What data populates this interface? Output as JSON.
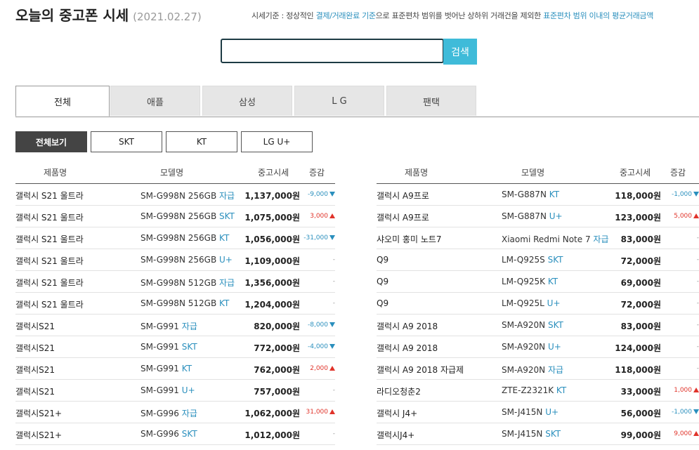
{
  "header": {
    "title": "오늘의 중고폰 시세",
    "date": "(2021.02.27)",
    "criteria_prefix": "시세기준 : 정상적인 ",
    "criteria_hl1": "결제/거래완료 기준",
    "criteria_mid": "으로 표준편차 범위를 벗어난 상하위 거래건을 제외한 ",
    "criteria_hl2": "표준편차 범위 이내의 평균거래금액"
  },
  "search": {
    "value": "",
    "button_label": "검색"
  },
  "tabs": [
    "전체",
    "애플",
    "삼성",
    "L G",
    "팬택"
  ],
  "filters": [
    "전체보기",
    "SKT",
    "KT",
    "LG U+"
  ],
  "columns": {
    "name": "제품명",
    "model": "모델명",
    "price": "중고시세",
    "change": "증감"
  },
  "left_rows": [
    {
      "name": "갤럭시 S21 울트라",
      "model": "SM-G998N 256GB",
      "carrier": "자급",
      "price": "1,137,000원",
      "change": "-9,000",
      "dir": "down"
    },
    {
      "name": "갤럭시 S21 울트라",
      "model": "SM-G998N 256GB",
      "carrier": "SKT",
      "price": "1,075,000원",
      "change": "3,000",
      "dir": "up"
    },
    {
      "name": "갤럭시 S21 울트라",
      "model": "SM-G998N 256GB",
      "carrier": "KT",
      "price": "1,056,000원",
      "change": "-31,000",
      "dir": "down"
    },
    {
      "name": "갤럭시 S21 울트라",
      "model": "SM-G998N 256GB",
      "carrier": "U+",
      "price": "1,109,000원",
      "change": "-",
      "dir": "flat"
    },
    {
      "name": "갤럭시 S21 울트라",
      "model": "SM-G998N 512GB",
      "carrier": "자급",
      "price": "1,356,000원",
      "change": "-",
      "dir": "flat"
    },
    {
      "name": "갤럭시 S21 울트라",
      "model": "SM-G998N 512GB",
      "carrier": "KT",
      "price": "1,204,000원",
      "change": "-",
      "dir": "flat"
    },
    {
      "name": "갤럭시S21",
      "model": "SM-G991",
      "carrier": "자급",
      "price": "820,000원",
      "change": "-8,000",
      "dir": "down"
    },
    {
      "name": "갤럭시S21",
      "model": "SM-G991",
      "carrier": "SKT",
      "price": "772,000원",
      "change": "-4,000",
      "dir": "down"
    },
    {
      "name": "갤럭시S21",
      "model": "SM-G991",
      "carrier": "KT",
      "price": "762,000원",
      "change": "2,000",
      "dir": "up"
    },
    {
      "name": "갤럭시S21",
      "model": "SM-G991",
      "carrier": "U+",
      "price": "757,000원",
      "change": "-",
      "dir": "flat"
    },
    {
      "name": "갤럭시S21+",
      "model": "SM-G996",
      "carrier": "자급",
      "price": "1,062,000원",
      "change": "31,000",
      "dir": "up"
    },
    {
      "name": "갤럭시S21+",
      "model": "SM-G996",
      "carrier": "SKT",
      "price": "1,012,000원",
      "change": "-",
      "dir": "flat"
    }
  ],
  "right_rows": [
    {
      "name": "갤럭시 A9프로",
      "model": "SM-G887N",
      "carrier": "KT",
      "price": "118,000원",
      "change": "-1,000",
      "dir": "down"
    },
    {
      "name": "갤럭시 A9프로",
      "model": "SM-G887N",
      "carrier": "U+",
      "price": "123,000원",
      "change": "5,000",
      "dir": "up"
    },
    {
      "name": "샤오미 홍미 노트7",
      "model": "Xiaomi Redmi Note 7",
      "carrier": "자급",
      "price": "83,000원",
      "change": "-",
      "dir": "flat"
    },
    {
      "name": "Q9",
      "model": "LM-Q925S",
      "carrier": "SKT",
      "price": "72,000원",
      "change": "-",
      "dir": "flat"
    },
    {
      "name": "Q9",
      "model": "LM-Q925K",
      "carrier": "KT",
      "price": "69,000원",
      "change": "-",
      "dir": "flat"
    },
    {
      "name": "Q9",
      "model": "LM-Q925L",
      "carrier": "U+",
      "price": "72,000원",
      "change": "-",
      "dir": "flat"
    },
    {
      "name": "갤럭시 A9 2018",
      "model": "SM-A920N",
      "carrier": "SKT",
      "price": "83,000원",
      "change": "-",
      "dir": "flat"
    },
    {
      "name": "갤럭시 A9 2018",
      "model": "SM-A920N",
      "carrier": "U+",
      "price": "124,000원",
      "change": "-",
      "dir": "flat"
    },
    {
      "name": "갤럭시 A9 2018 자급제",
      "model": "SM-A920N",
      "carrier": "자급",
      "price": "118,000원",
      "change": "-",
      "dir": "flat"
    },
    {
      "name": "라디오청춘2",
      "model": "ZTE-Z2321K",
      "carrier": "KT",
      "price": "33,000원",
      "change": "1,000",
      "dir": "up"
    },
    {
      "name": "갤럭시 J4+",
      "model": "SM-J415N",
      "carrier": "U+",
      "price": "56,000원",
      "change": "-1,000",
      "dir": "down"
    },
    {
      "name": "갤럭시J4+",
      "model": "SM-J415N",
      "carrier": "SKT",
      "price": "99,000원",
      "change": "9,000",
      "dir": "up"
    }
  ]
}
